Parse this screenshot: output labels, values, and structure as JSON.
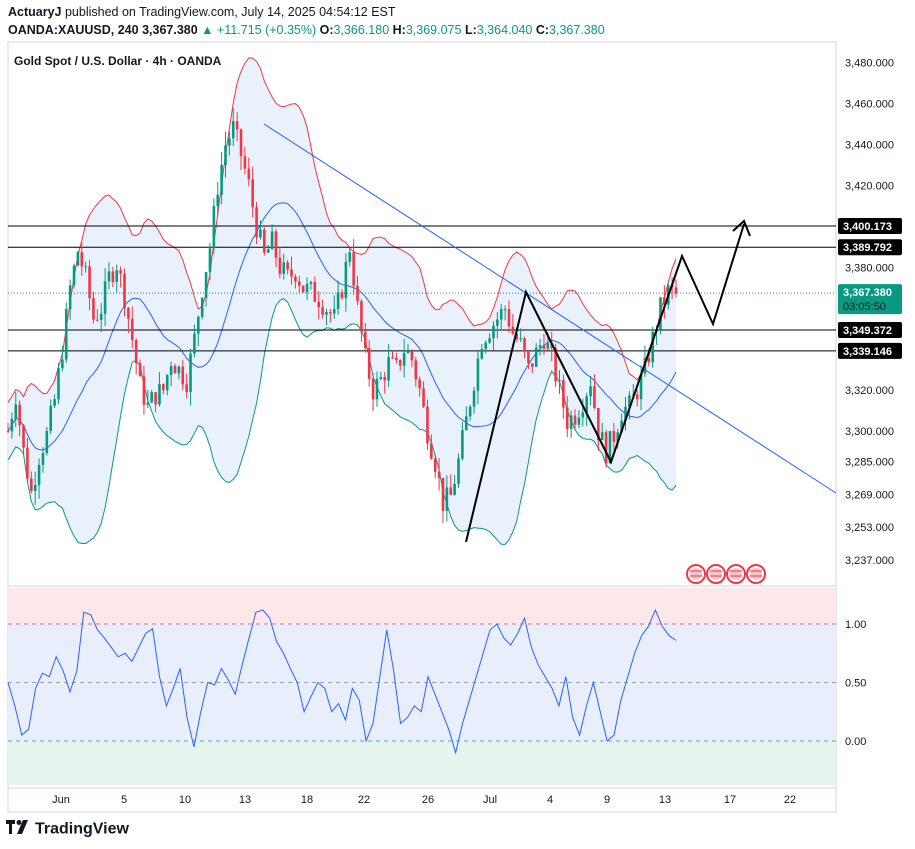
{
  "header": {
    "author": "ActuaryJ",
    "published_text": "published on TradingView.com, July 14, 2025 04:54:12 EST",
    "symbol": "OANDA:XAUUSD, 240",
    "price": "3,367.380",
    "change": "▲ +11.715 (+0.35%)",
    "o_label": "O:",
    "o_value": "3,366.180",
    "h_label": "H:",
    "h_value": "3,369.075",
    "l_label": "L:",
    "l_value": "3,364.040",
    "c_label": "C:",
    "c_value": "3,367.380"
  },
  "chart_data": {
    "type": "candlestick",
    "title": "Gold Spot / U.S. Dollar · 4h · OANDA",
    "x_tick_labels": [
      "Jun",
      "5",
      "10",
      "13",
      "18",
      "22",
      "26",
      "Jul",
      "4",
      "9",
      "13",
      "17",
      "22"
    ],
    "y_tick_labels": [
      3480,
      3460,
      3440,
      3420,
      3380,
      3320,
      3300,
      3285,
      3269,
      3253,
      3237
    ],
    "y_range": [
      3230,
      3490
    ],
    "horizontal_levels": [
      {
        "value": 3400.173,
        "label": "3,400.173"
      },
      {
        "value": 3389.792,
        "label": "3,389.792"
      },
      {
        "value": 3349.372,
        "label": "3,349.372"
      },
      {
        "value": 3339.146,
        "label": "3,339.146"
      }
    ],
    "current_price": {
      "value": 3367.38,
      "label": "3,367.380",
      "countdown": "03:05:50"
    },
    "close_path": [
      [
        0,
        3300
      ],
      [
        2,
        3318
      ],
      [
        4,
        3290
      ],
      [
        6,
        3270
      ],
      [
        8,
        3288
      ],
      [
        10,
        3298
      ],
      [
        12,
        3315
      ],
      [
        14,
        3340
      ],
      [
        16,
        3370
      ],
      [
        18,
        3388
      ],
      [
        20,
        3375
      ],
      [
        22,
        3355
      ],
      [
        24,
        3360
      ],
      [
        26,
        3375
      ],
      [
        28,
        3382
      ],
      [
        30,
        3366
      ],
      [
        32,
        3345
      ],
      [
        34,
        3322
      ],
      [
        36,
        3312
      ],
      [
        38,
        3318
      ],
      [
        40,
        3320
      ],
      [
        42,
        3335
      ],
      [
        44,
        3330
      ],
      [
        46,
        3325
      ],
      [
        48,
        3345
      ],
      [
        50,
        3370
      ],
      [
        52,
        3390
      ],
      [
        54,
        3420
      ],
      [
        56,
        3440
      ],
      [
        58,
        3448
      ],
      [
        60,
        3435
      ],
      [
        62,
        3420
      ],
      [
        64,
        3400
      ],
      [
        66,
        3385
      ],
      [
        68,
        3392
      ],
      [
        70,
        3380
      ],
      [
        72,
        3375
      ],
      [
        74,
        3378
      ],
      [
        76,
        3370
      ],
      [
        78,
        3368
      ],
      [
        80,
        3365
      ],
      [
        82,
        3360
      ],
      [
        84,
        3355
      ],
      [
        86,
        3370
      ],
      [
        88,
        3390
      ],
      [
        90,
        3360
      ],
      [
        92,
        3335
      ],
      [
        94,
        3320
      ],
      [
        96,
        3325
      ],
      [
        98,
        3333
      ],
      [
        100,
        3330
      ],
      [
        102,
        3340
      ],
      [
        104,
        3335
      ],
      [
        106,
        3320
      ],
      [
        108,
        3300
      ],
      [
        110,
        3285
      ],
      [
        112,
        3265
      ],
      [
        114,
        3268
      ],
      [
        116,
        3285
      ],
      [
        118,
        3305
      ],
      [
        120,
        3325
      ],
      [
        122,
        3345
      ],
      [
        124,
        3350
      ],
      [
        126,
        3355
      ],
      [
        128,
        3360
      ],
      [
        130,
        3348
      ],
      [
        132,
        3342
      ],
      [
        134,
        3330
      ],
      [
        136,
        3338
      ],
      [
        138,
        3346
      ],
      [
        140,
        3335
      ],
      [
        142,
        3320
      ],
      [
        144,
        3305
      ],
      [
        146,
        3308
      ],
      [
        148,
        3315
      ],
      [
        150,
        3325
      ],
      [
        152,
        3300
      ],
      [
        154,
        3290
      ],
      [
        156,
        3298
      ],
      [
        158,
        3310
      ],
      [
        160,
        3312
      ],
      [
        162,
        3320
      ],
      [
        164,
        3330
      ],
      [
        166,
        3345
      ],
      [
        168,
        3360
      ],
      [
        170,
        3368
      ],
      [
        172,
        3367.4
      ]
    ],
    "oscillator": {
      "y_tick_labels": [
        "1.00",
        "0.50",
        "0.00"
      ],
      "y_range": [
        -0.38,
        1.32
      ],
      "values": [
        0.5,
        0.3,
        0.05,
        0.1,
        0.45,
        0.58,
        0.55,
        0.72,
        0.6,
        0.42,
        0.6,
        1.1,
        1.08,
        0.95,
        0.88,
        0.8,
        0.72,
        0.75,
        0.68,
        0.8,
        0.92,
        0.96,
        0.55,
        0.3,
        0.45,
        0.62,
        0.2,
        -0.05,
        0.25,
        0.5,
        0.48,
        0.62,
        0.52,
        0.4,
        0.65,
        0.88,
        1.1,
        1.12,
        1.05,
        0.85,
        0.75,
        0.62,
        0.5,
        0.25,
        0.38,
        0.5,
        0.45,
        0.25,
        0.32,
        0.18,
        0.45,
        0.35,
        0.0,
        0.15,
        0.55,
        0.95,
        0.6,
        0.15,
        0.2,
        0.3,
        0.25,
        0.55,
        0.4,
        0.25,
        0.1,
        -0.1,
        0.15,
        0.35,
        0.55,
        0.75,
        0.95,
        1.0,
        0.88,
        0.82,
        0.92,
        1.05,
        0.8,
        0.65,
        0.55,
        0.45,
        0.3,
        0.55,
        0.2,
        0.05,
        0.3,
        0.5,
        0.25,
        0.0,
        0.05,
        0.35,
        0.55,
        0.75,
        0.9,
        0.98,
        1.12,
        0.98,
        0.9,
        0.86
      ]
    },
    "events_count": 4
  },
  "footer": {
    "brand": "TradingView"
  },
  "colors": {
    "up": "#089981",
    "down": "#f23645",
    "bb_upper": "#f23645",
    "bb_basis": "#2962ff",
    "bb_lower": "#089981",
    "bb_fill": "#e3eefb",
    "trendline": "#2962ff",
    "osc_line": "#2962ff",
    "zone_top": "#fde7e9",
    "zone_mid": "#e8eefc",
    "zone_bottom": "#e6f4ee"
  }
}
